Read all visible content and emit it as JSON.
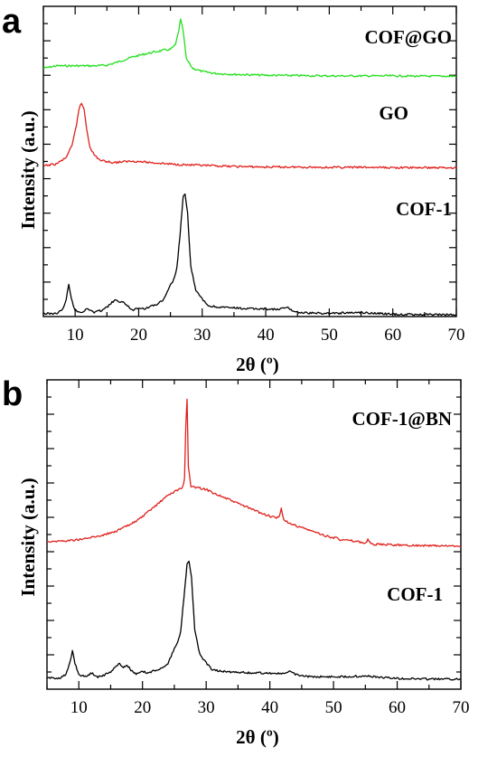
{
  "chart_data": [
    {
      "type": "line",
      "panel_label": "a",
      "xlabel": "2θ (º)",
      "ylabel": "Intensity (a.u.)",
      "xlim": [
        5,
        70
      ],
      "xticks": [
        10,
        20,
        30,
        40,
        50,
        60,
        70
      ],
      "y_ticks_labeled": false,
      "series": [
        {
          "name": "COF@GO",
          "color": "#22e01c",
          "x": [
            5,
            7,
            9,
            11,
            13,
            15,
            17,
            19,
            21,
            23,
            24,
            25,
            25.8,
            26.3,
            26.6,
            27,
            27.5,
            28.5,
            30,
            32,
            35,
            40,
            45,
            50,
            55,
            60,
            65,
            70
          ],
          "y": [
            0.81,
            0.818,
            0.818,
            0.818,
            0.818,
            0.82,
            0.832,
            0.846,
            0.856,
            0.864,
            0.868,
            0.87,
            0.885,
            0.93,
            0.965,
            0.93,
            0.84,
            0.81,
            0.8,
            0.794,
            0.791,
            0.788,
            0.787,
            0.786,
            0.786,
            0.786,
            0.785,
            0.785
          ]
        },
        {
          "name": "GO",
          "color": "#e0201c",
          "x": [
            5,
            7,
            8.5,
            9.5,
            10.2,
            10.6,
            11,
            11.4,
            11.8,
            12.3,
            13,
            14,
            16,
            19,
            22,
            25,
            30,
            35,
            40,
            45,
            50,
            55,
            60,
            65,
            70
          ],
          "y": [
            0.494,
            0.5,
            0.52,
            0.56,
            0.63,
            0.685,
            0.703,
            0.685,
            0.62,
            0.56,
            0.53,
            0.512,
            0.505,
            0.51,
            0.505,
            0.5,
            0.495,
            0.492,
            0.49,
            0.49,
            0.489,
            0.489,
            0.488,
            0.488,
            0.488
          ]
        },
        {
          "name": "COF-1",
          "color": "#000000",
          "x": [
            5,
            7,
            8,
            8.6,
            9,
            9.4,
            10,
            11,
            12,
            13,
            14,
            15,
            15.8,
            16.4,
            17,
            17.6,
            18.2,
            19,
            20,
            21,
            22,
            23,
            24,
            25,
            25.5,
            26,
            26.5,
            27,
            27.3,
            27.7,
            28.2,
            29,
            30,
            31,
            33,
            35,
            37,
            40,
            42,
            43.3,
            44.5,
            46,
            50,
            55,
            60,
            65,
            70
          ],
          "y": [
            0.007,
            0.008,
            0.02,
            0.06,
            0.115,
            0.06,
            0.02,
            0.012,
            0.025,
            0.012,
            0.018,
            0.03,
            0.048,
            0.058,
            0.045,
            0.053,
            0.035,
            0.02,
            0.03,
            0.025,
            0.035,
            0.042,
            0.06,
            0.11,
            0.13,
            0.17,
            0.29,
            0.43,
            0.44,
            0.37,
            0.18,
            0.09,
            0.06,
            0.035,
            0.03,
            0.028,
            0.025,
            0.025,
            0.022,
            0.03,
            0.015,
            0.01,
            0.008,
            0.012,
            0.005,
            0.004,
            0.003
          ]
        }
      ]
    },
    {
      "type": "line",
      "panel_label": "b",
      "xlabel": "2θ (º)",
      "ylabel": "Intensity (a.u.)",
      "xlim": [
        5,
        70
      ],
      "xticks": [
        10,
        20,
        30,
        40,
        50,
        60,
        70
      ],
      "y_ticks_labeled": false,
      "series": [
        {
          "name": "COF-1@BN",
          "color": "#e0201c",
          "x": [
            5,
            8,
            11,
            14,
            16,
            18,
            20,
            22,
            24,
            25.5,
            26.3,
            26.6,
            26.8,
            27,
            27.2,
            27.6,
            28,
            30,
            32,
            35,
            37,
            39,
            41,
            41.5,
            41.8,
            42.2,
            43,
            45,
            48,
            50,
            50.5,
            51,
            53,
            55,
            55.4,
            56,
            60,
            65,
            70
          ],
          "y": [
            0.468,
            0.47,
            0.478,
            0.493,
            0.508,
            0.53,
            0.56,
            0.6,
            0.64,
            0.66,
            0.67,
            0.7,
            0.9,
            1.0,
            0.75,
            0.67,
            0.672,
            0.662,
            0.64,
            0.61,
            0.59,
            0.57,
            0.555,
            0.56,
            0.59,
            0.55,
            0.535,
            0.52,
            0.495,
            0.48,
            0.487,
            0.475,
            0.47,
            0.462,
            0.475,
            0.457,
            0.455,
            0.452,
            0.45
          ]
        },
        {
          "name": "COF-1",
          "color": "#000000",
          "x": [
            5,
            7,
            8,
            8.6,
            9,
            9.4,
            10,
            11,
            12,
            13,
            14,
            15,
            15.8,
            16.4,
            17,
            17.6,
            18.2,
            19,
            20,
            21,
            22,
            23,
            24,
            25,
            25.5,
            26,
            26.5,
            27,
            27.3,
            27.7,
            28.2,
            29,
            30,
            31,
            33,
            35,
            37,
            40,
            42,
            43.3,
            44.5,
            46,
            50,
            55,
            60,
            65,
            70
          ],
          "y": [
            0.007,
            0.008,
            0.02,
            0.06,
            0.105,
            0.06,
            0.02,
            0.012,
            0.025,
            0.012,
            0.018,
            0.03,
            0.048,
            0.058,
            0.045,
            0.053,
            0.035,
            0.02,
            0.03,
            0.025,
            0.035,
            0.042,
            0.06,
            0.11,
            0.13,
            0.17,
            0.29,
            0.41,
            0.42,
            0.36,
            0.18,
            0.09,
            0.06,
            0.035,
            0.03,
            0.028,
            0.025,
            0.025,
            0.022,
            0.03,
            0.015,
            0.012,
            0.012,
            0.014,
            0.006,
            0.004,
            0.003
          ]
        }
      ]
    }
  ]
}
